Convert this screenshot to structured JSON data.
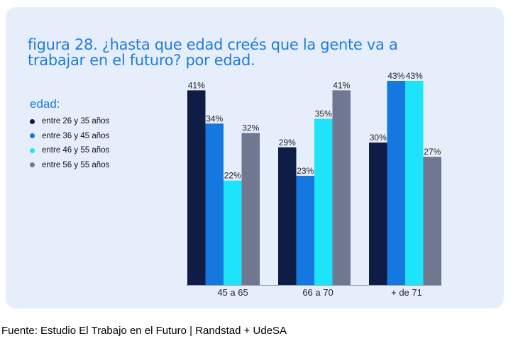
{
  "title": "figura 28. ¿hasta que edad creés que la gente va a trabajar en el futuro? por edad.",
  "legend": {
    "title": "edad:",
    "items": [
      {
        "label": "entre 26 y 35 años",
        "color": "#0f1c45"
      },
      {
        "label": "entre 36 y 45 años",
        "color": "#1577e0"
      },
      {
        "label": "entre 46 y 55 años",
        "color": "#1de4fa"
      },
      {
        "label": "entre 56 y 55 años",
        "color": "#6f7890"
      }
    ]
  },
  "source": "Fuente: Estudio El Trabajo en el Futuro | Randstad + UdeSA",
  "chart_data": {
    "type": "bar",
    "categories": [
      "45 a 65",
      "66 a 70",
      "+   de 71"
    ],
    "series": [
      {
        "name": "entre 26 y 35 años",
        "values": [
          41,
          29,
          30
        ]
      },
      {
        "name": "entre 36 y 45 años",
        "values": [
          34,
          23,
          43
        ]
      },
      {
        "name": "entre 46 y 55 años",
        "values": [
          22,
          35,
          43
        ]
      },
      {
        "name": "entre 56 y 55 años",
        "values": [
          32,
          41,
          27
        ]
      }
    ],
    "value_suffix": "%",
    "ylim": [
      0,
      43
    ],
    "legend_position": "left",
    "grid": false
  }
}
